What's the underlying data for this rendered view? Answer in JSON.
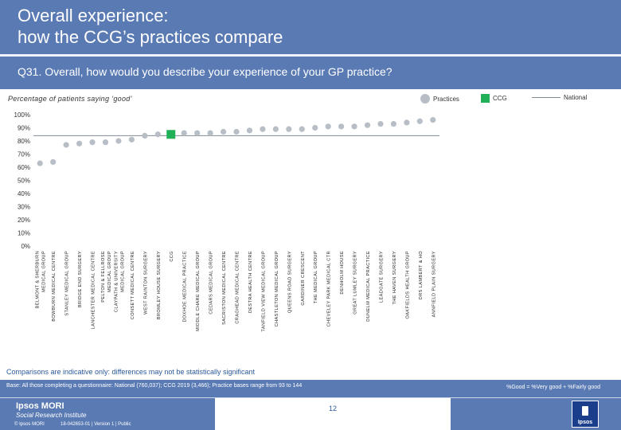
{
  "header": {
    "title": "Overall experience:\nhow the CCG’s practices compare",
    "question": "Q31. Overall, how would you describe your experience of your GP practice?"
  },
  "subtitle": "Percentage of patients saying ‘good’",
  "legend": {
    "practices": "Practices",
    "ccg": "CCG",
    "national": "National"
  },
  "colors": {
    "header_bg": "#5a7ab4",
    "practice": "#b8bec6",
    "ccg": "#21b057",
    "national": "#7f8a96",
    "disclaimer": "#2b5a9a"
  },
  "chart_data": {
    "type": "scatter",
    "ylim": [
      0,
      100
    ],
    "yticks": [
      "0%",
      "10%",
      "20%",
      "30%",
      "40%",
      "50%",
      "60%",
      "70%",
      "80%",
      "90%",
      "100%"
    ],
    "national": 84,
    "categories": [
      "BELMONT & SHERBURN MEDICAL GROUP",
      "BOWBURN MEDICAL CENTRE",
      "STANLEY MEDICAL GROUP",
      "BRIDGE END SURGERY",
      "LANCHESTER MEDICAL CENTRE",
      "PELTON & FELLROSE MEDICAL GROUP",
      "CLAYPATH & UNIVERSITY MEDICAL GROUP",
      "CONSETT MEDICAL CENTRE",
      "WEST RAINTON SURGERY",
      "BROMLEY HOUSE SURGERY",
      "CCG",
      "DOXHOE MEDICAL PRACTICE",
      "MIDDLE CHARE MEDICAL GROUP",
      "CEDARS MEDICAL GROUP",
      "SACRISTON MEDICAL CENTRE",
      "CRAGHEAD MEDICAL CENTRE",
      "DESTRA HEALTH CENTRE",
      "TANFIELD VIEW MEDICAL GROUP",
      "CHASTLETON MEDICAL GROUP",
      "QUEENS ROAD SURGERY",
      "GARDINER CRESCENT",
      "THE MEDICAL GROUP",
      "CHEVELEY PARK MEDICAL CTR",
      "DENHOLM HOUSE",
      "GREAT LUMLEY SURGERY",
      "DUNELM MEDICAL PRACTICE",
      "LEADGATE SURGERY",
      "THE HAVEN SURGERY",
      "OAKFIELDS HEALTH GROUP",
      "DRS LAMBERT & HO",
      "ANNFIELD PLAIN SURGERY"
    ],
    "values": [
      63,
      64,
      77,
      78,
      79,
      79,
      80,
      81,
      84,
      85,
      85,
      86,
      86,
      86,
      87,
      87,
      88,
      89,
      89,
      89,
      89,
      90,
      91,
      91,
      91,
      92,
      93,
      93,
      94,
      95,
      96
    ],
    "ccg_index": 10
  },
  "disclaimer": "Comparisons are indicative only: differences may not be statistically significant",
  "footer": {
    "base": "Base: All those completing a questionnaire: National (760,037); CCG 2019 (3,466); Practice bases range from 93 to 144",
    "good_def": "%Good = %Very good + %Fairly good",
    "page": "12",
    "brand_line1": "Ipsos MORI",
    "brand_line2": "Social Research Institute",
    "copyright": "© Ipsos MORI",
    "job": "18-042653-01 | Version 1 | Public",
    "logo_text": "Ipsos"
  }
}
